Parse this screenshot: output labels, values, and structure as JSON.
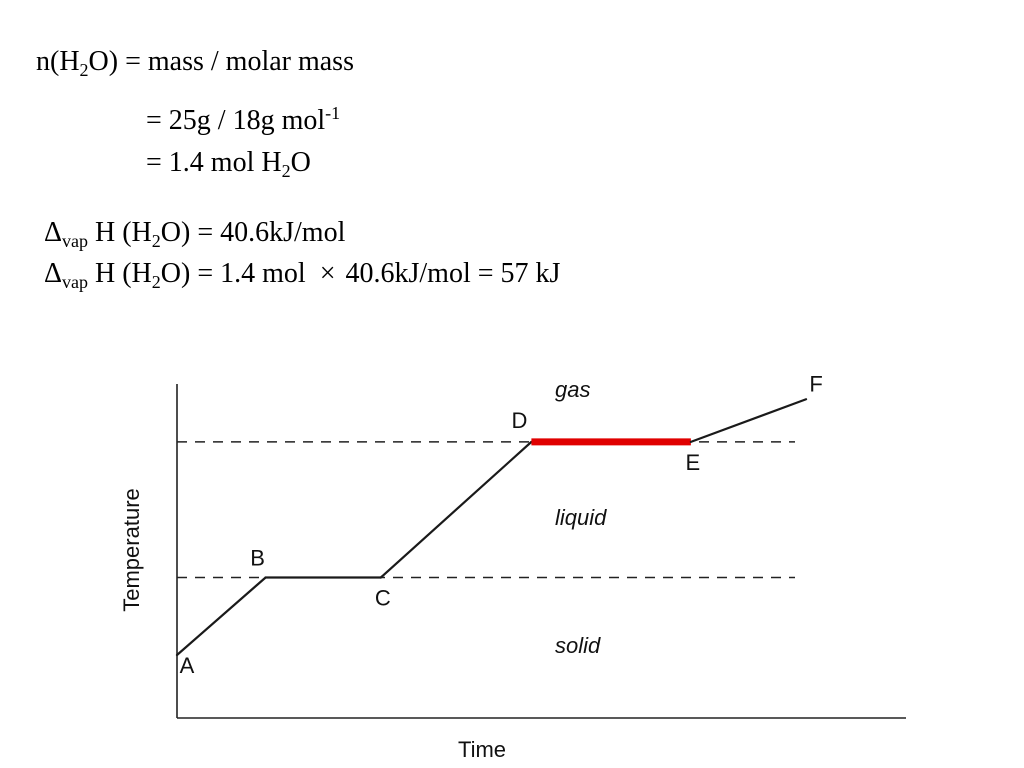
{
  "equations": {
    "moles_line": {
      "n_prefix": "n(H",
      "sub": "2",
      "rest": "O) = mass / molar mass"
    },
    "mass_line": {
      "text": "= 25g / 18g mol",
      "sup": "-1"
    },
    "result_line": {
      "text": "= 1.4 mol H",
      "sub": "2",
      "rest": "O"
    },
    "dh_line": {
      "delta": "Δ",
      "sub_vap": "vap",
      "mid": " H (H",
      "sub": "2",
      "rest": "O) = 40.6kJ/mol"
    },
    "total_line": {
      "delta": "Δ",
      "sub_vap": "vap",
      "mid": " H (H",
      "sub": "2",
      "pre": "O) = 1.4 mol",
      "times": "×",
      "post": "40.6kJ/mol = 57 kJ"
    }
  },
  "chart_data": {
    "type": "line",
    "xlabel": "Time",
    "ylabel": "Temperature",
    "region_labels": [
      "gas",
      "liquid",
      "solid"
    ],
    "points": [
      {
        "label": "A",
        "x": 0.0,
        "y": 0.0
      },
      {
        "label": "B",
        "x": 1.0,
        "y": 1.0
      },
      {
        "label": "C",
        "x": 2.3,
        "y": 1.0
      },
      {
        "label": "D",
        "x": 4.0,
        "y": 2.75
      },
      {
        "label": "E",
        "x": 5.8,
        "y": 2.75
      },
      {
        "label": "F",
        "x": 7.1,
        "y": 3.3
      }
    ],
    "highlight_segment": [
      "D",
      "E"
    ],
    "highlight_color": "#e00000",
    "line_color": "#1a1a1a",
    "dashed_levels": [
      1.0,
      2.75
    ]
  }
}
